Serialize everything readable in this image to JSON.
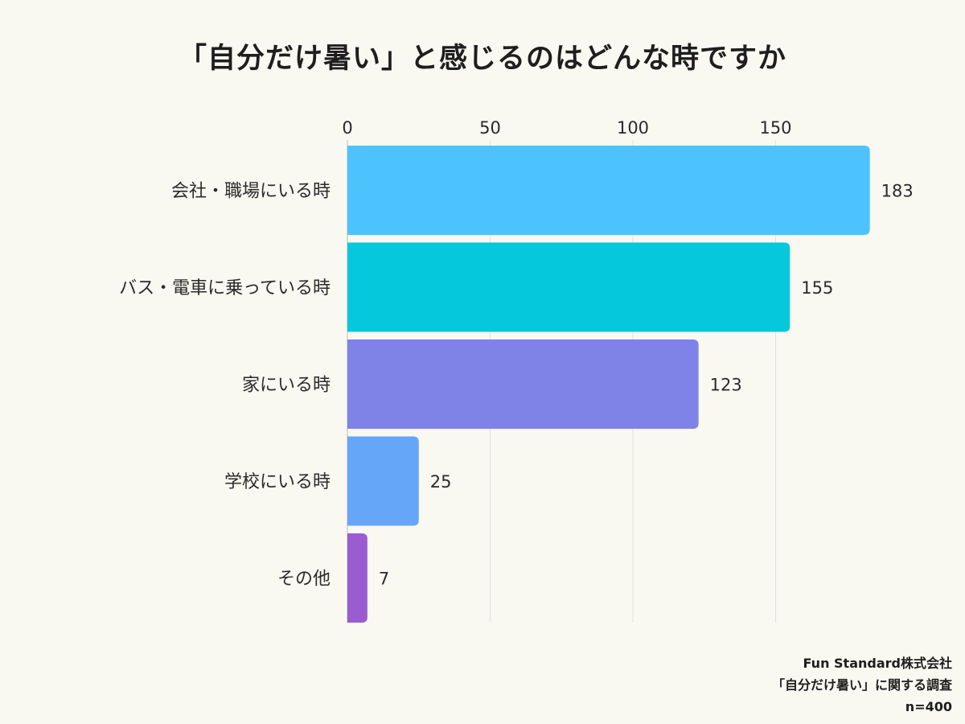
{
  "chart_data": {
    "type": "bar",
    "orientation": "horizontal",
    "title": "「自分だけ暑い」と感じるのはどんな時ですか",
    "categories": [
      "会社・職場にいる時",
      "バス・電車に乗っている時",
      "家にいる時",
      "学校にいる時",
      "その他"
    ],
    "values": [
      183,
      155,
      123,
      25,
      7
    ],
    "colors": [
      "#4dc3fd",
      "#05c8dc",
      "#7f82e6",
      "#66a6f8",
      "#9a5ccf"
    ],
    "xticks": [
      0,
      50,
      100,
      150
    ],
    "xlim": [
      0,
      200
    ],
    "xlabel": "",
    "ylabel": "",
    "grid": true,
    "axis_position": "top",
    "data_labels": true
  },
  "source": {
    "company": "Fun Standard株式会社",
    "survey": "「自分だけ暑い」に関する調査",
    "sample": "n=400"
  }
}
